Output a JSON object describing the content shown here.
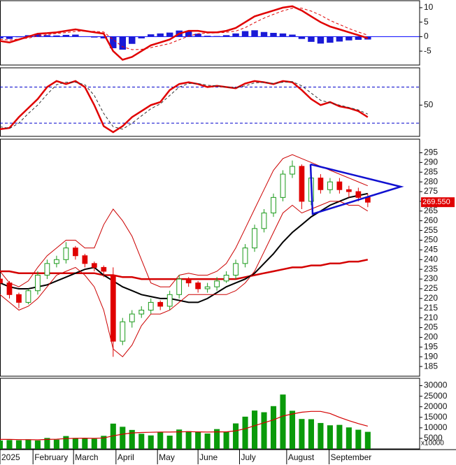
{
  "chart_data": [
    {
      "type": "macd",
      "xlim": [
        0,
        44.5
      ],
      "ylim": [
        -9.8,
        12.4
      ],
      "yticks": [
        -5,
        0,
        5,
        10
      ],
      "levels": [
        0
      ],
      "level_color": "#0000ff",
      "bars": {
        "color": "#1a1ad6",
        "values": [
          -0.6,
          -0.8,
          -0.2,
          0.5,
          0.8,
          0.5,
          0.4,
          0.6,
          0.7,
          0.1,
          -0.3,
          -0.6,
          -4,
          -4.5,
          -2.5,
          -0.6,
          0.8,
          1.1,
          1.4,
          2.1,
          1.8,
          1,
          0.3,
          0.2,
          0.5,
          1.1,
          1.9,
          2.2,
          1.6,
          1.3,
          1.1,
          0.7,
          -0.8,
          -1.8,
          -2.4,
          -2.1,
          -1.7,
          -1.3,
          -1.1,
          -1.0
        ]
      },
      "series": [
        {
          "color": "#e00000",
          "values": [
            -1.5,
            -2,
            -1,
            0,
            1,
            1.2,
            1.5,
            2,
            2.5,
            2,
            1.5,
            1,
            -5,
            -8,
            -7,
            -5,
            -3,
            -2,
            -1,
            1,
            2,
            2,
            1.5,
            1.5,
            2,
            3,
            5,
            7,
            8,
            9,
            10,
            10.5,
            9,
            7,
            5,
            3.5,
            2.5,
            1.5,
            0.5,
            -0.5
          ]
        },
        {
          "color": "#e00000",
          "dash": true,
          "values": [
            -0.9,
            -1.2,
            -0.8,
            -0.5,
            0.2,
            0.7,
            1.1,
            1.4,
            1.8,
            1.9,
            1.8,
            1.6,
            -1,
            -3.5,
            -4.5,
            -4.4,
            -3.8,
            -3.1,
            -2.4,
            -1.1,
            0.2,
            1,
            1.2,
            1.3,
            1.5,
            1.9,
            3.1,
            4.8,
            6.4,
            7.7,
            8.9,
            9.8,
            9.8,
            8.8,
            7.4,
            5.6,
            4.2,
            2.8,
            1.6,
            0.5
          ]
        }
      ]
    },
    {
      "type": "stochastic",
      "xlim": [
        0,
        44.5
      ],
      "ylim": [
        -2,
        112
      ],
      "yticks": [
        50
      ],
      "levels": [
        20,
        80
      ],
      "level_color": "#0000cc",
      "series": [
        {
          "color": "#e00000",
          "values": [
            10,
            12,
            30,
            45,
            60,
            80,
            90,
            85,
            90,
            80,
            50,
            15,
            5,
            15,
            30,
            40,
            50,
            55,
            75,
            85,
            88,
            85,
            80,
            82,
            80,
            78,
            86,
            90,
            88,
            85,
            90,
            88,
            75,
            60,
            50,
            55,
            48,
            45,
            40,
            30
          ]
        },
        {
          "color": "#333333",
          "dash": true,
          "values": [
            14,
            11,
            20,
            36,
            50,
            68,
            84,
            88,
            88,
            84,
            66,
            36,
            14,
            10,
            20,
            32,
            44,
            52,
            66,
            80,
            86,
            86,
            83,
            82,
            80,
            79,
            82,
            87,
            88,
            86,
            88,
            89,
            82,
            70,
            58,
            54,
            50,
            46,
            42,
            35
          ]
        }
      ]
    },
    {
      "type": "candlestick",
      "xlim": [
        0,
        44.5
      ],
      "ylim": [
        180,
        302
      ],
      "yticks": [
        185,
        190,
        195,
        200,
        205,
        210,
        215,
        220,
        225,
        230,
        235,
        240,
        245,
        250,
        255,
        260,
        265,
        270,
        275,
        280,
        285,
        290,
        295
      ],
      "up_color": "#1a9a1a",
      "down_color": "#e00000",
      "open": [
        230,
        228,
        222,
        218,
        224,
        232,
        238,
        240,
        246,
        242,
        238,
        236,
        232,
        198,
        208,
        212,
        214,
        218,
        216,
        222,
        230,
        228,
        225,
        226,
        229,
        232,
        238,
        246,
        256,
        264,
        272,
        284,
        288,
        270,
        282,
        276,
        280,
        276,
        275,
        272
      ],
      "high": [
        231,
        229,
        223,
        225,
        234,
        240,
        242,
        249,
        247,
        243,
        239,
        237,
        236,
        210,
        214,
        216,
        220,
        219,
        224,
        232,
        231,
        229,
        228,
        231,
        234,
        240,
        248,
        258,
        266,
        274,
        286,
        291,
        289,
        284,
        284,
        282,
        282,
        278,
        277,
        274
      ],
      "low": [
        226,
        220,
        215,
        217,
        222,
        230,
        236,
        238,
        240,
        236,
        234,
        231,
        190,
        196,
        205,
        210,
        212,
        214,
        214,
        220,
        226,
        223,
        223,
        224,
        228,
        230,
        236,
        244,
        254,
        262,
        270,
        282,
        266,
        268,
        274,
        274,
        274,
        272,
        270,
        267
      ],
      "close": [
        228,
        222,
        218,
        224,
        232,
        238,
        240,
        246,
        242,
        238,
        236,
        234,
        198,
        208,
        212,
        214,
        218,
        216,
        222,
        230,
        228,
        225,
        226,
        229,
        232,
        238,
        246,
        256,
        264,
        272,
        284,
        288,
        270,
        282,
        276,
        280,
        276,
        275,
        272,
        269.55
      ],
      "lines": [
        {
          "color": "#d40000",
          "width": 2.5,
          "values": [
            234,
            234,
            233,
            233,
            233,
            233,
            233,
            233,
            233,
            233,
            233,
            232,
            232,
            231,
            231,
            230,
            230,
            230,
            230,
            230,
            230,
            230,
            230,
            230,
            230,
            230,
            231,
            232,
            233,
            234,
            235,
            236,
            236,
            237,
            237,
            238,
            238,
            239,
            239,
            240
          ]
        },
        {
          "color": "#000000",
          "width": 2,
          "values": [
            228,
            226,
            225,
            225,
            226,
            227,
            229,
            231,
            233,
            235,
            236,
            232,
            229,
            226,
            224,
            222,
            221,
            220,
            220,
            219,
            218,
            218,
            220,
            223,
            226,
            228,
            230,
            233,
            238,
            243,
            249,
            254,
            258,
            262,
            265,
            268,
            270,
            272,
            273,
            274
          ]
        },
        {
          "color": "#cc0000",
          "width": 1,
          "values": [
            234,
            228,
            226,
            229,
            236,
            242,
            246,
            250,
            250,
            246,
            246,
            258,
            266,
            260,
            252,
            240,
            228,
            226,
            226,
            232,
            233,
            232,
            232,
            234,
            238,
            246,
            256,
            266,
            276,
            286,
            292,
            294,
            292,
            290,
            288,
            286,
            284,
            282,
            280,
            278
          ]
        },
        {
          "color": "#cc0000",
          "width": 1,
          "values": [
            222,
            218,
            214,
            216,
            220,
            226,
            232,
            234,
            236,
            232,
            226,
            214,
            194,
            190,
            196,
            206,
            212,
            212,
            214,
            218,
            222,
            222,
            222,
            222,
            222,
            224,
            228,
            234,
            244,
            254,
            264,
            268,
            264,
            266,
            268,
            270,
            270,
            268,
            268,
            265
          ]
        }
      ],
      "last_label": {
        "value": 269.55,
        "label": "269.550"
      }
    },
    {
      "type": "volume",
      "xlim": [
        0,
        44.5
      ],
      "ylim": [
        0,
        33500
      ],
      "yticks": [
        5000,
        10000,
        15000,
        20000,
        25000,
        30000
      ],
      "unit_label": "x10000",
      "color": "#0a9a0a",
      "values": [
        4000,
        4200,
        4100,
        4300,
        4000,
        5200,
        4400,
        6100,
        5200,
        5000,
        4800,
        6200,
        12000,
        10500,
        9000,
        7200,
        6400,
        8100,
        6300,
        9200,
        8400,
        8100,
        7300,
        9400,
        8200,
        12100,
        15300,
        18200,
        17400,
        20300,
        25800,
        18100,
        14200,
        14100,
        12300,
        11200,
        11400,
        10200,
        9100,
        8100
      ],
      "ma": {
        "color": "#d40000",
        "values": [
          4500,
          4500,
          4400,
          4400,
          4300,
          4500,
          4600,
          4900,
          5000,
          5100,
          5000,
          5200,
          6200,
          7000,
          7600,
          7800,
          7900,
          8000,
          8000,
          8100,
          8200,
          8100,
          8000,
          8100,
          8100,
          8600,
          9600,
          11000,
          12400,
          13800,
          15600,
          16600,
          17400,
          17800,
          17800,
          16800,
          15000,
          13400,
          12000,
          10800
        ]
      },
      "xticks": [
        {
          "value": 0,
          "label": "2025"
        },
        {
          "value": 3.5,
          "label": "February"
        },
        {
          "value": 7.8,
          "label": "March"
        },
        {
          "value": 12.3,
          "label": "April"
        },
        {
          "value": 16.7,
          "label": "May"
        },
        {
          "value": 21,
          "label": "June"
        },
        {
          "value": 25.4,
          "label": "July"
        },
        {
          "value": 30.4,
          "label": "August"
        },
        {
          "value": 34.9,
          "label": "September"
        }
      ]
    }
  ]
}
